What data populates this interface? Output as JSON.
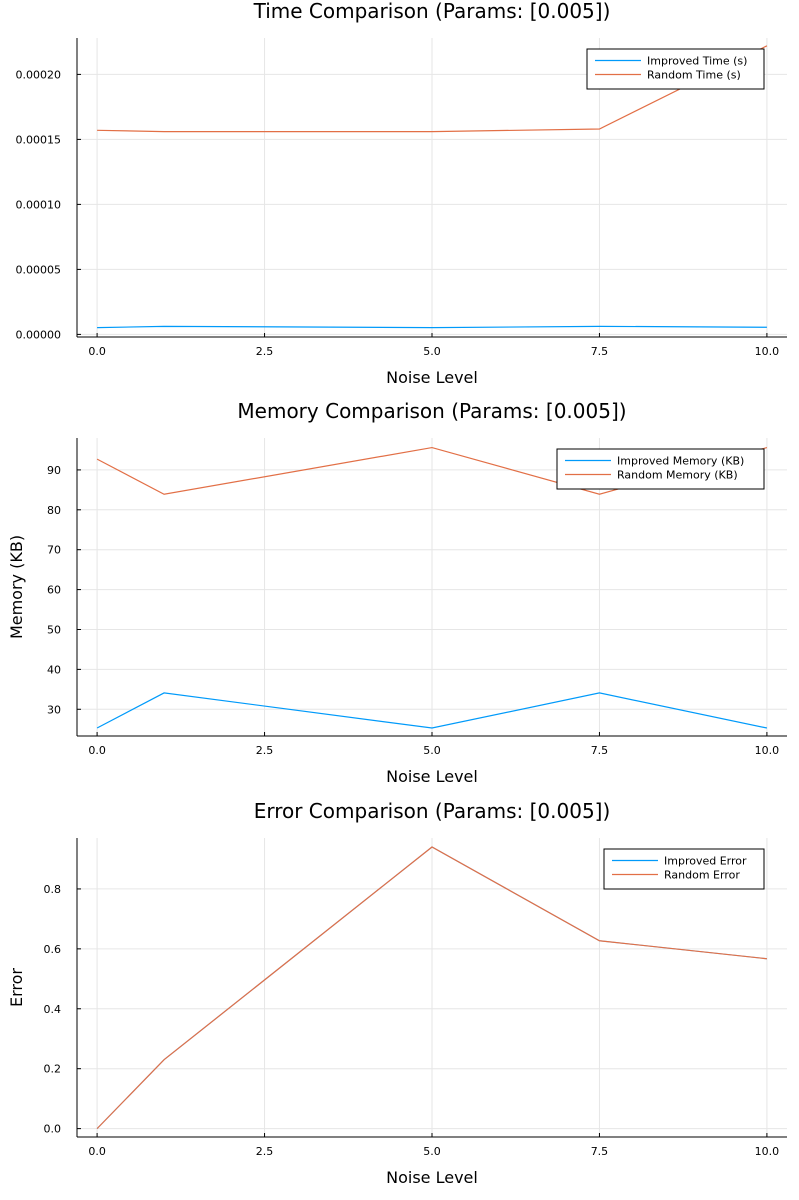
{
  "chart_data": [
    {
      "type": "line",
      "title": "Time Comparison (Params: [0.005])",
      "xlabel": "Noise Level",
      "ylabel": "",
      "x": [
        0,
        1,
        5,
        7.5,
        10
      ],
      "xlim": [
        -0.3,
        10.3
      ],
      "ylim": [
        -2e-06,
        0.000228
      ],
      "xticks": [
        0,
        2.5,
        5,
        7.5,
        10
      ],
      "xtick_labels": [
        "0.0",
        "2.5",
        "5.0",
        "7.5",
        "10.0"
      ],
      "yticks": [
        0,
        5e-05,
        0.0001,
        0.00015,
        0.0002
      ],
      "ytick_labels": [
        "0.00000",
        "0.00005",
        "0.00010",
        "0.00015",
        "0.00020"
      ],
      "grid": true,
      "legend": "top-right",
      "series": [
        {
          "name": "Improved Time (s)",
          "color": "#009AFA",
          "values": [
            5.2e-06,
            6.2e-06,
            5.2e-06,
            6.2e-06,
            5.5e-06
          ]
        },
        {
          "name": "Random Time (s)",
          "color": "#E26F46",
          "values": [
            0.000157,
            0.000156,
            0.000156,
            0.000158,
            0.000222
          ]
        }
      ]
    },
    {
      "type": "line",
      "title": "Memory Comparison (Params: [0.005])",
      "xlabel": "Noise Level",
      "ylabel": "Memory (KB)",
      "x": [
        0,
        1,
        5,
        7.5,
        10
      ],
      "xlim": [
        -0.3,
        10.3
      ],
      "ylim": [
        23.3,
        98
      ],
      "xticks": [
        0,
        2.5,
        5,
        7.5,
        10
      ],
      "xtick_labels": [
        "0.0",
        "2.5",
        "5.0",
        "7.5",
        "10.0"
      ],
      "yticks": [
        30,
        40,
        50,
        60,
        70,
        80,
        90
      ],
      "ytick_labels": [
        "30",
        "40",
        "50",
        "60",
        "70",
        "80",
        "90"
      ],
      "grid": true,
      "legend": "top-right",
      "series": [
        {
          "name": "Improved Memory (KB)",
          "color": "#009AFA",
          "values": [
            25.3,
            34.1,
            25.3,
            34.1,
            25.3
          ]
        },
        {
          "name": "Random Memory (KB)",
          "color": "#E26F46",
          "values": [
            92.7,
            83.9,
            95.6,
            83.9,
            95.6
          ]
        }
      ]
    },
    {
      "type": "line",
      "title": "Error Comparison (Params: [0.005])",
      "xlabel": "Noise Level",
      "ylabel": "Error",
      "x": [
        0,
        1,
        5,
        7.5,
        10
      ],
      "xlim": [
        -0.3,
        10.3
      ],
      "ylim": [
        -0.028,
        0.97
      ],
      "xticks": [
        0,
        2.5,
        5,
        7.5,
        10
      ],
      "xtick_labels": [
        "0.0",
        "2.5",
        "5.0",
        "7.5",
        "10.0"
      ],
      "yticks": [
        0,
        0.2,
        0.4,
        0.6,
        0.8
      ],
      "ytick_labels": [
        "0.0",
        "0.2",
        "0.4",
        "0.6",
        "0.8"
      ],
      "grid": true,
      "legend": "top-right",
      "series": [
        {
          "name": "Improved Error",
          "color": "#009AFA",
          "values": [
            0,
            0.23,
            0.94,
            0.627,
            0.567
          ]
        },
        {
          "name": "Random Error",
          "color": "#E26F46",
          "values": [
            0,
            0.23,
            0.94,
            0.627,
            0.567
          ]
        }
      ]
    }
  ]
}
